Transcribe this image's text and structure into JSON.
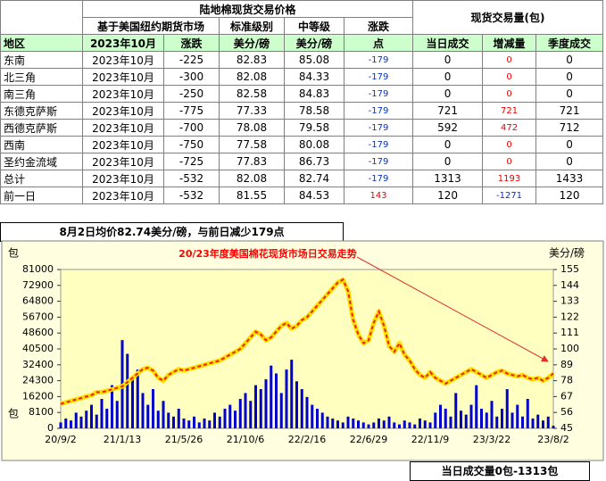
{
  "table": {
    "title": "陆地棉现货交易价格",
    "volume_title": "现货交易量(包)",
    "subheaders": [
      "基于美国纽约期货市场",
      "标准级别",
      "中等级",
      "涨跌"
    ],
    "columns": [
      "地区",
      "2023年10月",
      "涨跌",
      "美分/磅",
      "美分/磅",
      "点",
      "当日成交",
      "增减量",
      "季度成交"
    ],
    "rows": [
      [
        "东南",
        "2023年10月",
        -225,
        82.83,
        85.08,
        -179,
        0,
        0,
        0
      ],
      [
        "北三角",
        "2023年10月",
        -300,
        82.08,
        84.33,
        -179,
        0,
        0,
        0
      ],
      [
        "南三角",
        "2023年10月",
        -250,
        82.58,
        84.83,
        -179,
        0,
        0,
        0
      ],
      [
        "东德克萨斯",
        "2023年10月",
        -775,
        77.33,
        78.58,
        -179,
        721,
        721,
        721
      ],
      [
        "西德克萨斯",
        "2023年10月",
        -700,
        78.08,
        79.58,
        -179,
        592,
        472,
        712
      ],
      [
        "西南",
        "2023年10月",
        -750,
        77.58,
        80.08,
        -179,
        0,
        0,
        0
      ],
      [
        "圣约金流域",
        "2023年10月",
        -725,
        77.83,
        86.73,
        -179,
        0,
        0,
        0
      ],
      [
        "总计",
        "2023年10月",
        -532,
        82.08,
        82.74,
        -179,
        1313,
        1193,
        1433
      ],
      [
        "前一日",
        "2023年10月",
        -532,
        81.55,
        84.53,
        143,
        120,
        -1271,
        120
      ]
    ]
  },
  "note": "8月2日均价82.74美分/磅，与前日减少179点",
  "footnote": "当日成交量0包-1313包",
  "chart_data": {
    "type": "combo",
    "title": "20/23年度美国棉花现货市场日交易走势",
    "y_label": "包",
    "y2_label": "美分/磅",
    "categories": [
      "20/9/2",
      null,
      null,
      null,
      null,
      null,
      null,
      null,
      null,
      null,
      null,
      null,
      "21/1/13",
      null,
      null,
      null,
      null,
      null,
      null,
      null,
      null,
      null,
      null,
      null,
      "21/5/26",
      null,
      null,
      null,
      null,
      null,
      null,
      null,
      null,
      null,
      null,
      null,
      "21/10/6",
      null,
      null,
      null,
      null,
      null,
      null,
      null,
      null,
      null,
      null,
      null,
      "22/2/16",
      null,
      null,
      null,
      null,
      null,
      null,
      null,
      null,
      null,
      null,
      null,
      "22/6/29",
      null,
      null,
      null,
      null,
      null,
      null,
      null,
      null,
      null,
      null,
      null,
      "22/11/9",
      null,
      null,
      null,
      null,
      null,
      null,
      null,
      null,
      null,
      null,
      null,
      "23/3/22",
      null,
      null,
      null,
      null,
      null,
      null,
      null,
      null,
      null,
      null,
      null,
      "23/8/2"
    ],
    "ylim": [
      0,
      81000
    ],
    "yticks": [
      0,
      8100,
      16200,
      24300,
      32400,
      40500,
      48600,
      56700,
      64800,
      72900,
      81000
    ],
    "y2lim": [
      45,
      155
    ],
    "y2ticks": [
      45,
      56,
      67,
      78,
      89,
      100,
      111,
      122,
      133,
      144,
      155
    ],
    "series": [
      {
        "type": "bar",
        "color": "#0000cc",
        "values": [
          3000,
          5000,
          4000,
          8000,
          6000,
          9000,
          12000,
          7000,
          15000,
          10000,
          22000,
          14000,
          45000,
          38000,
          25000,
          30000,
          18000,
          12000,
          20000,
          9000,
          14000,
          8000,
          6000,
          10000,
          5000,
          4000,
          6000,
          3000,
          5000,
          4000,
          8000,
          6000,
          10000,
          12000,
          9000,
          15000,
          18000,
          14000,
          22000,
          20000,
          25000,
          32000,
          28000,
          18000,
          30000,
          35000,
          24000,
          20000,
          16000,
          12000,
          10000,
          8000,
          6000,
          5000,
          4000,
          3000,
          6000,
          5000,
          4000,
          3000,
          2000,
          3000,
          5000,
          4000,
          6000,
          3000,
          2000,
          4000,
          3000,
          2000,
          5000,
          4000,
          3000,
          8000,
          12000,
          10000,
          6000,
          18000,
          9000,
          7000,
          12000,
          22000,
          10000,
          8000,
          14000,
          6000,
          10000,
          20000,
          8000,
          12000,
          6000,
          15000,
          5000,
          7000,
          4000,
          6000,
          1313
        ]
      },
      {
        "type": "line",
        "axis": "y2",
        "color": "#ffdd00",
        "dash_color": "#ee2200",
        "values": [
          62,
          63,
          64,
          65,
          66,
          67,
          68,
          70,
          70,
          71,
          72,
          73,
          74,
          77,
          80,
          83,
          86,
          87,
          85,
          80,
          78,
          82,
          84,
          86,
          85,
          86,
          87,
          88,
          89,
          90,
          91,
          92,
          94,
          96,
          98,
          100,
          104,
          108,
          112,
          110,
          106,
          108,
          112,
          116,
          118,
          114,
          116,
          120,
          122,
          126,
          130,
          134,
          138,
          142,
          146,
          148,
          140,
          120,
          110,
          104,
          106,
          118,
          126,
          116,
          102,
          98,
          104,
          96,
          92,
          86,
          82,
          80,
          84,
          80,
          78,
          76,
          78,
          80,
          82,
          84,
          86,
          84,
          82,
          80,
          82,
          84,
          85,
          83,
          82,
          81,
          82,
          80,
          79,
          80,
          78,
          80,
          83
        ]
      }
    ]
  }
}
